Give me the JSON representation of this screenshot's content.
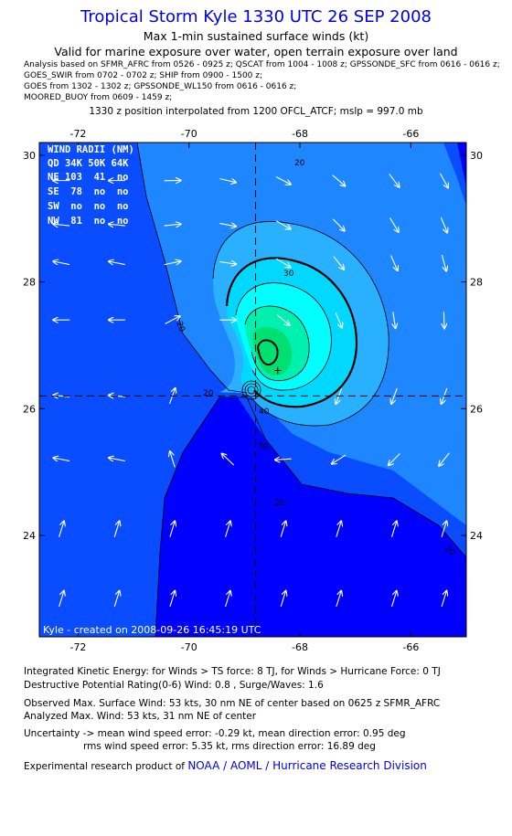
{
  "header": {
    "title": "Tropical Storm Kyle 1330 UTC 26 SEP 2008",
    "subtitle": "Max 1-min sustained surface winds (kt)",
    "valid": "Valid for marine exposure over water, open terrain exposure over land",
    "analysis_lines": [
      "Analysis based on  SFMR_AFRC from 0526 - 0925 z;  QSCAT from 1004 - 1008 z;  GPSSONDE_SFC from 0616 - 0616 z;",
      "GOES_SWIR from 0702 - 0702 z;  SHIP from 0900 - 1500 z;",
      "GOES from 1302 - 1302 z;  GPSSONDE_WL150 from 0616 - 0616 z;",
      "MOORED_BUOY from 0609 - 1459 z;"
    ],
    "position_note": "1330 z position interpolated from 1200 OFCL_ATCF; mslp = 997.0 mb"
  },
  "chart_data": {
    "type": "contour",
    "title": "Tropical Storm Kyle 1330 UTC 26 SEP 2008",
    "units": "kt",
    "x_ticks": [
      "-72",
      "-70",
      "-68",
      "-66"
    ],
    "y_ticks": [
      "30",
      "28",
      "26",
      "24"
    ],
    "x_tick_values": [
      -72,
      -70,
      -68,
      -66
    ],
    "y_tick_values": [
      30,
      28,
      26,
      24
    ],
    "xlim": [
      -72.7,
      -65.0
    ],
    "ylim": [
      22.4,
      30.2
    ],
    "center": {
      "lon": -68.8,
      "lat": 26.2
    },
    "max_wind_marker": {
      "lon": -68.4,
      "lat": 26.6,
      "label": "+"
    },
    "contour_labels": [
      "20",
      "30",
      "20",
      "20",
      "30",
      "40",
      "20",
      "20"
    ],
    "wind_radii": {
      "header": "WIND RADII (NM)",
      "columns": "QD 34K 50K 64K",
      "rows": [
        "NE 103  41  no",
        "SE  78  no  no",
        "SW  no  no  no",
        "NW  81  no  no"
      ]
    },
    "credit": "Kyle - created on 2008-09-26 16:45:19 UTC",
    "colors": {
      "darkest": "#0000ff",
      "dark": "#0a4cff",
      "mid": "#1e86ff",
      "light": "#29b0ff",
      "lighter": "#00d8ff",
      "cyan": "#00ffff",
      "green1": "#00f0b0",
      "green2": "#00e070"
    }
  },
  "footer": {
    "ike": "Integrated Kinetic Energy:  for Winds > TS force: 8 TJ,  for Winds > Hurricane Force: 0 TJ",
    "dpr": "Destructive Potential Rating(0-6)   Wind: 0.8 , Surge/Waves: 1.6",
    "obs_max": "Observed Max. Surface Wind: 53 kts, 30 nm NE of center based on 0625 z SFMR_AFRC",
    "ana_max": "Analyzed Max. Wind: 53 kts, 31 nm NE of center",
    "uncert1": "Uncertainty -> mean wind speed error:  -0.29 kt,   mean direction error: 0.95 deg",
    "uncert2": "rms wind speed error: 5.35 kt,   rms direction error: 16.89 deg",
    "product_prefix": "Experimental research product of",
    "product_link": "NOAA / AOML / Hurricane Research Division"
  }
}
